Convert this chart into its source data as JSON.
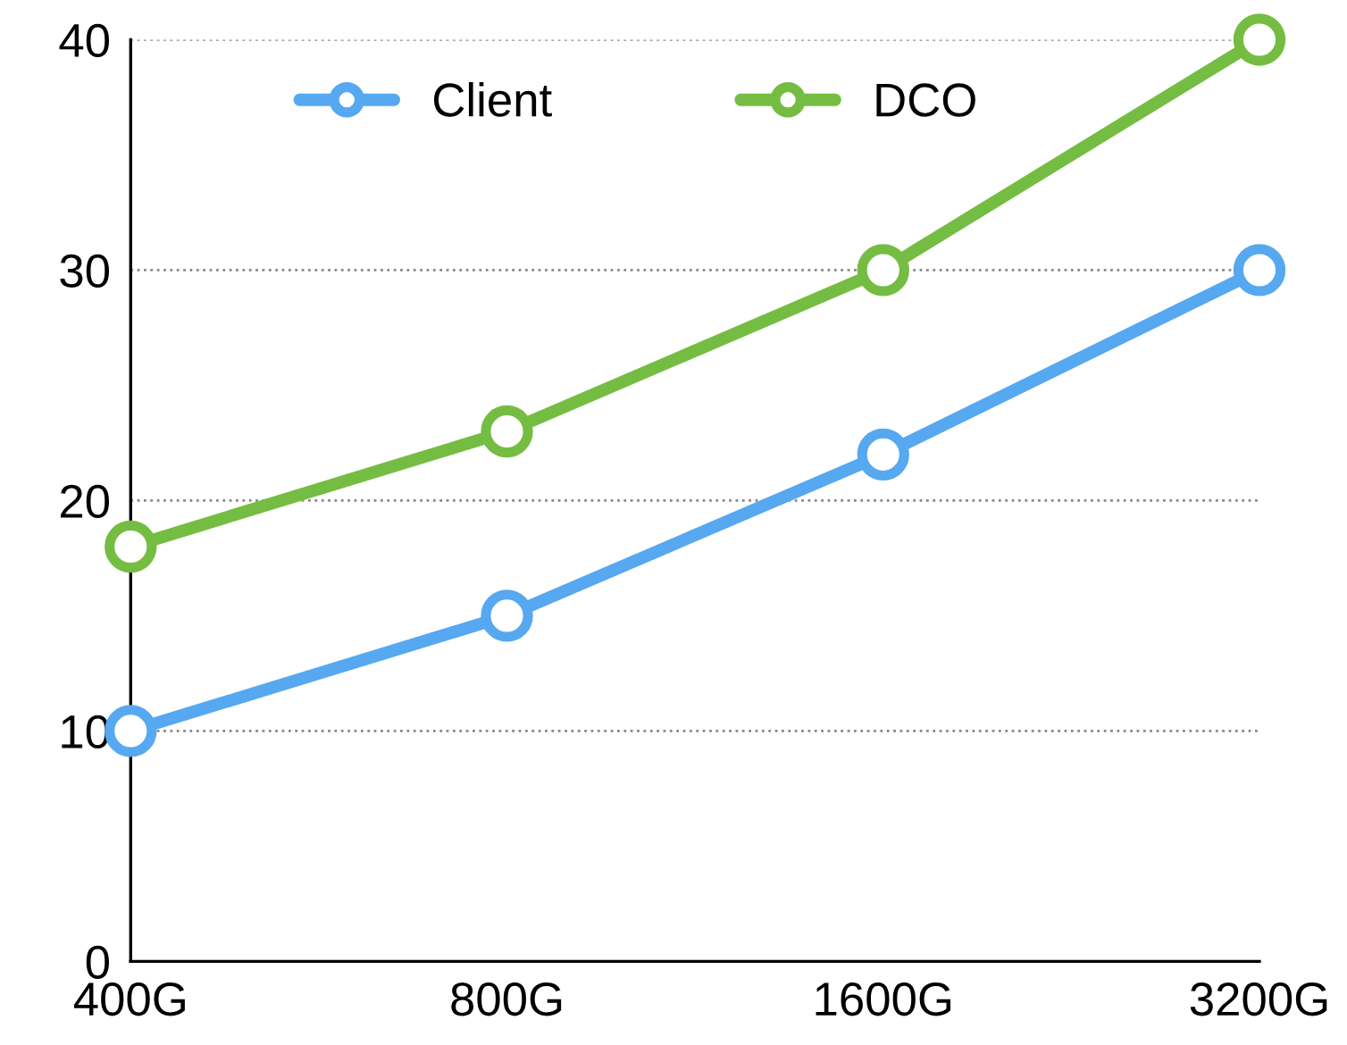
{
  "chart_data": {
    "type": "line",
    "categories": [
      "400G",
      "800G",
      "1600G",
      "3200G"
    ],
    "series": [
      {
        "name": "Client",
        "color": "#56a8f0",
        "values": [
          10,
          15,
          22,
          30
        ]
      },
      {
        "name": "DCO",
        "color": "#74bd42",
        "values": [
          18,
          23,
          30,
          40
        ]
      }
    ],
    "ylim": [
      0,
      40
    ],
    "yticks": [
      0,
      10,
      20,
      30,
      40
    ],
    "grid": "y",
    "legend": "top",
    "marker": "circle",
    "line_style": "solid"
  }
}
